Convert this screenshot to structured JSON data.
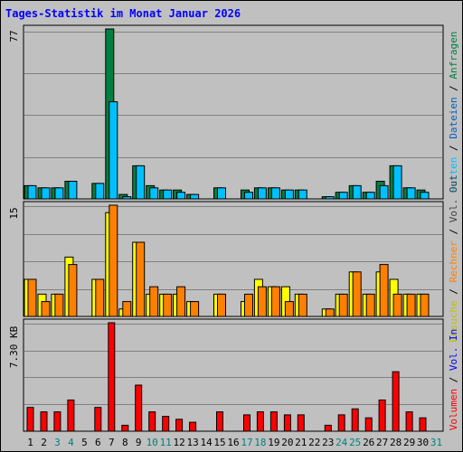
{
  "chart_data": {
    "type": "bar",
    "title": "Tages-Statistik im Monat Januar 2026",
    "categories": [
      "1",
      "2",
      "3",
      "4",
      "5",
      "6",
      "7",
      "8",
      "9",
      "10",
      "11",
      "12",
      "13",
      "14",
      "15",
      "16",
      "17",
      "18",
      "19",
      "20",
      "21",
      "22",
      "23",
      "24",
      "25",
      "26",
      "27",
      "28",
      "29",
      "30",
      "31"
    ],
    "weekend_days": [
      "3",
      "4",
      "10",
      "11",
      "17",
      "18",
      "24",
      "25",
      "31"
    ],
    "panels": [
      {
        "name": "top",
        "ymax_label": "77",
        "ymax": 77,
        "series": [
          {
            "name": "Anfragen",
            "color": "#008040",
            "values": [
              6,
              5,
              5,
              8,
              0,
              7,
              77,
              2,
              15,
              6,
              4,
              4,
              2,
              0,
              5,
              0,
              4,
              5,
              5,
              4,
              4,
              0,
              1,
              3,
              6,
              3,
              8,
              15,
              5,
              4,
              0
            ]
          },
          {
            "name": "Dateien",
            "color": "#00c0ff",
            "values": [
              6,
              5,
              5,
              8,
              0,
              7,
              44,
              1,
              15,
              5,
              4,
              3,
              2,
              0,
              5,
              0,
              3,
              5,
              5,
              4,
              4,
              0,
              1,
              3,
              6,
              3,
              6,
              15,
              5,
              3,
              0
            ]
          },
          {
            "name": "Seiten",
            "color": "#00ffff",
            "values": []
          }
        ]
      },
      {
        "name": "middle",
        "ymax_label": "15",
        "ymax": 15,
        "series": [
          {
            "name": "Besuche",
            "color": "#ffff00",
            "values": [
              5,
              3,
              3,
              8,
              0,
              5,
              14,
              1,
              10,
              3,
              3,
              3,
              2,
              0,
              3,
              0,
              2,
              5,
              4,
              4,
              3,
              0,
              1,
              3,
              6,
              3,
              6,
              5,
              3,
              3,
              0
            ]
          },
          {
            "name": "Rechner",
            "color": "#ff8000",
            "values": [
              5,
              2,
              3,
              7,
              0,
              5,
              15,
              2,
              10,
              4,
              3,
              4,
              2,
              0,
              3,
              0,
              3,
              4,
              4,
              2,
              3,
              0,
              1,
              3,
              6,
              3,
              7,
              3,
              3,
              3,
              0
            ]
          }
        ]
      },
      {
        "name": "bottom",
        "ymax_label": "7.30 KB",
        "ymax": 7.3,
        "series": [
          {
            "name": "Volumen",
            "color": "#ff0000",
            "values": [
              1.6,
              1.3,
              1.3,
              2.1,
              0,
              1.6,
              7.3,
              0.4,
              3.1,
              1.3,
              1.0,
              0.8,
              0.6,
              0,
              1.3,
              0,
              1.1,
              1.3,
              1.3,
              1.1,
              1.1,
              0,
              0.4,
              1.1,
              1.5,
              0.9,
              2.1,
              4.0,
              1.3,
              0.9,
              0
            ]
          }
        ]
      }
    ],
    "legend_right_top": [
      {
        "text": "Seiten",
        "color": "#00c0ff"
      },
      {
        "text": " / ",
        "color": "#000000"
      },
      {
        "text": "Dateien",
        "color": "#0060c0"
      },
      {
        "text": " / ",
        "color": "#000000"
      },
      {
        "text": "Anfragen",
        "color": "#008040"
      }
    ],
    "legend_right_middle": [
      {
        "text": "Besuche",
        "color": "#c0c000"
      },
      {
        "text": " / ",
        "color": "#000000"
      },
      {
        "text": "Rechner",
        "color": "#ff8000"
      },
      {
        "text": " / ",
        "color": "#000000"
      },
      {
        "text": "Vol. Out",
        "color": "#404040"
      }
    ],
    "legend_right_bottom": [
      {
        "text": "Volumen",
        "color": "#ff0000"
      },
      {
        "text": " / ",
        "color": "#000000"
      },
      {
        "text": "Vol. In",
        "color": "#0000ff"
      }
    ],
    "colors": {
      "background": "#c0c0c0",
      "grid": "#808080",
      "weekday_label": "#000000",
      "weekend_label": "#008080",
      "title": "#0000ff"
    }
  }
}
